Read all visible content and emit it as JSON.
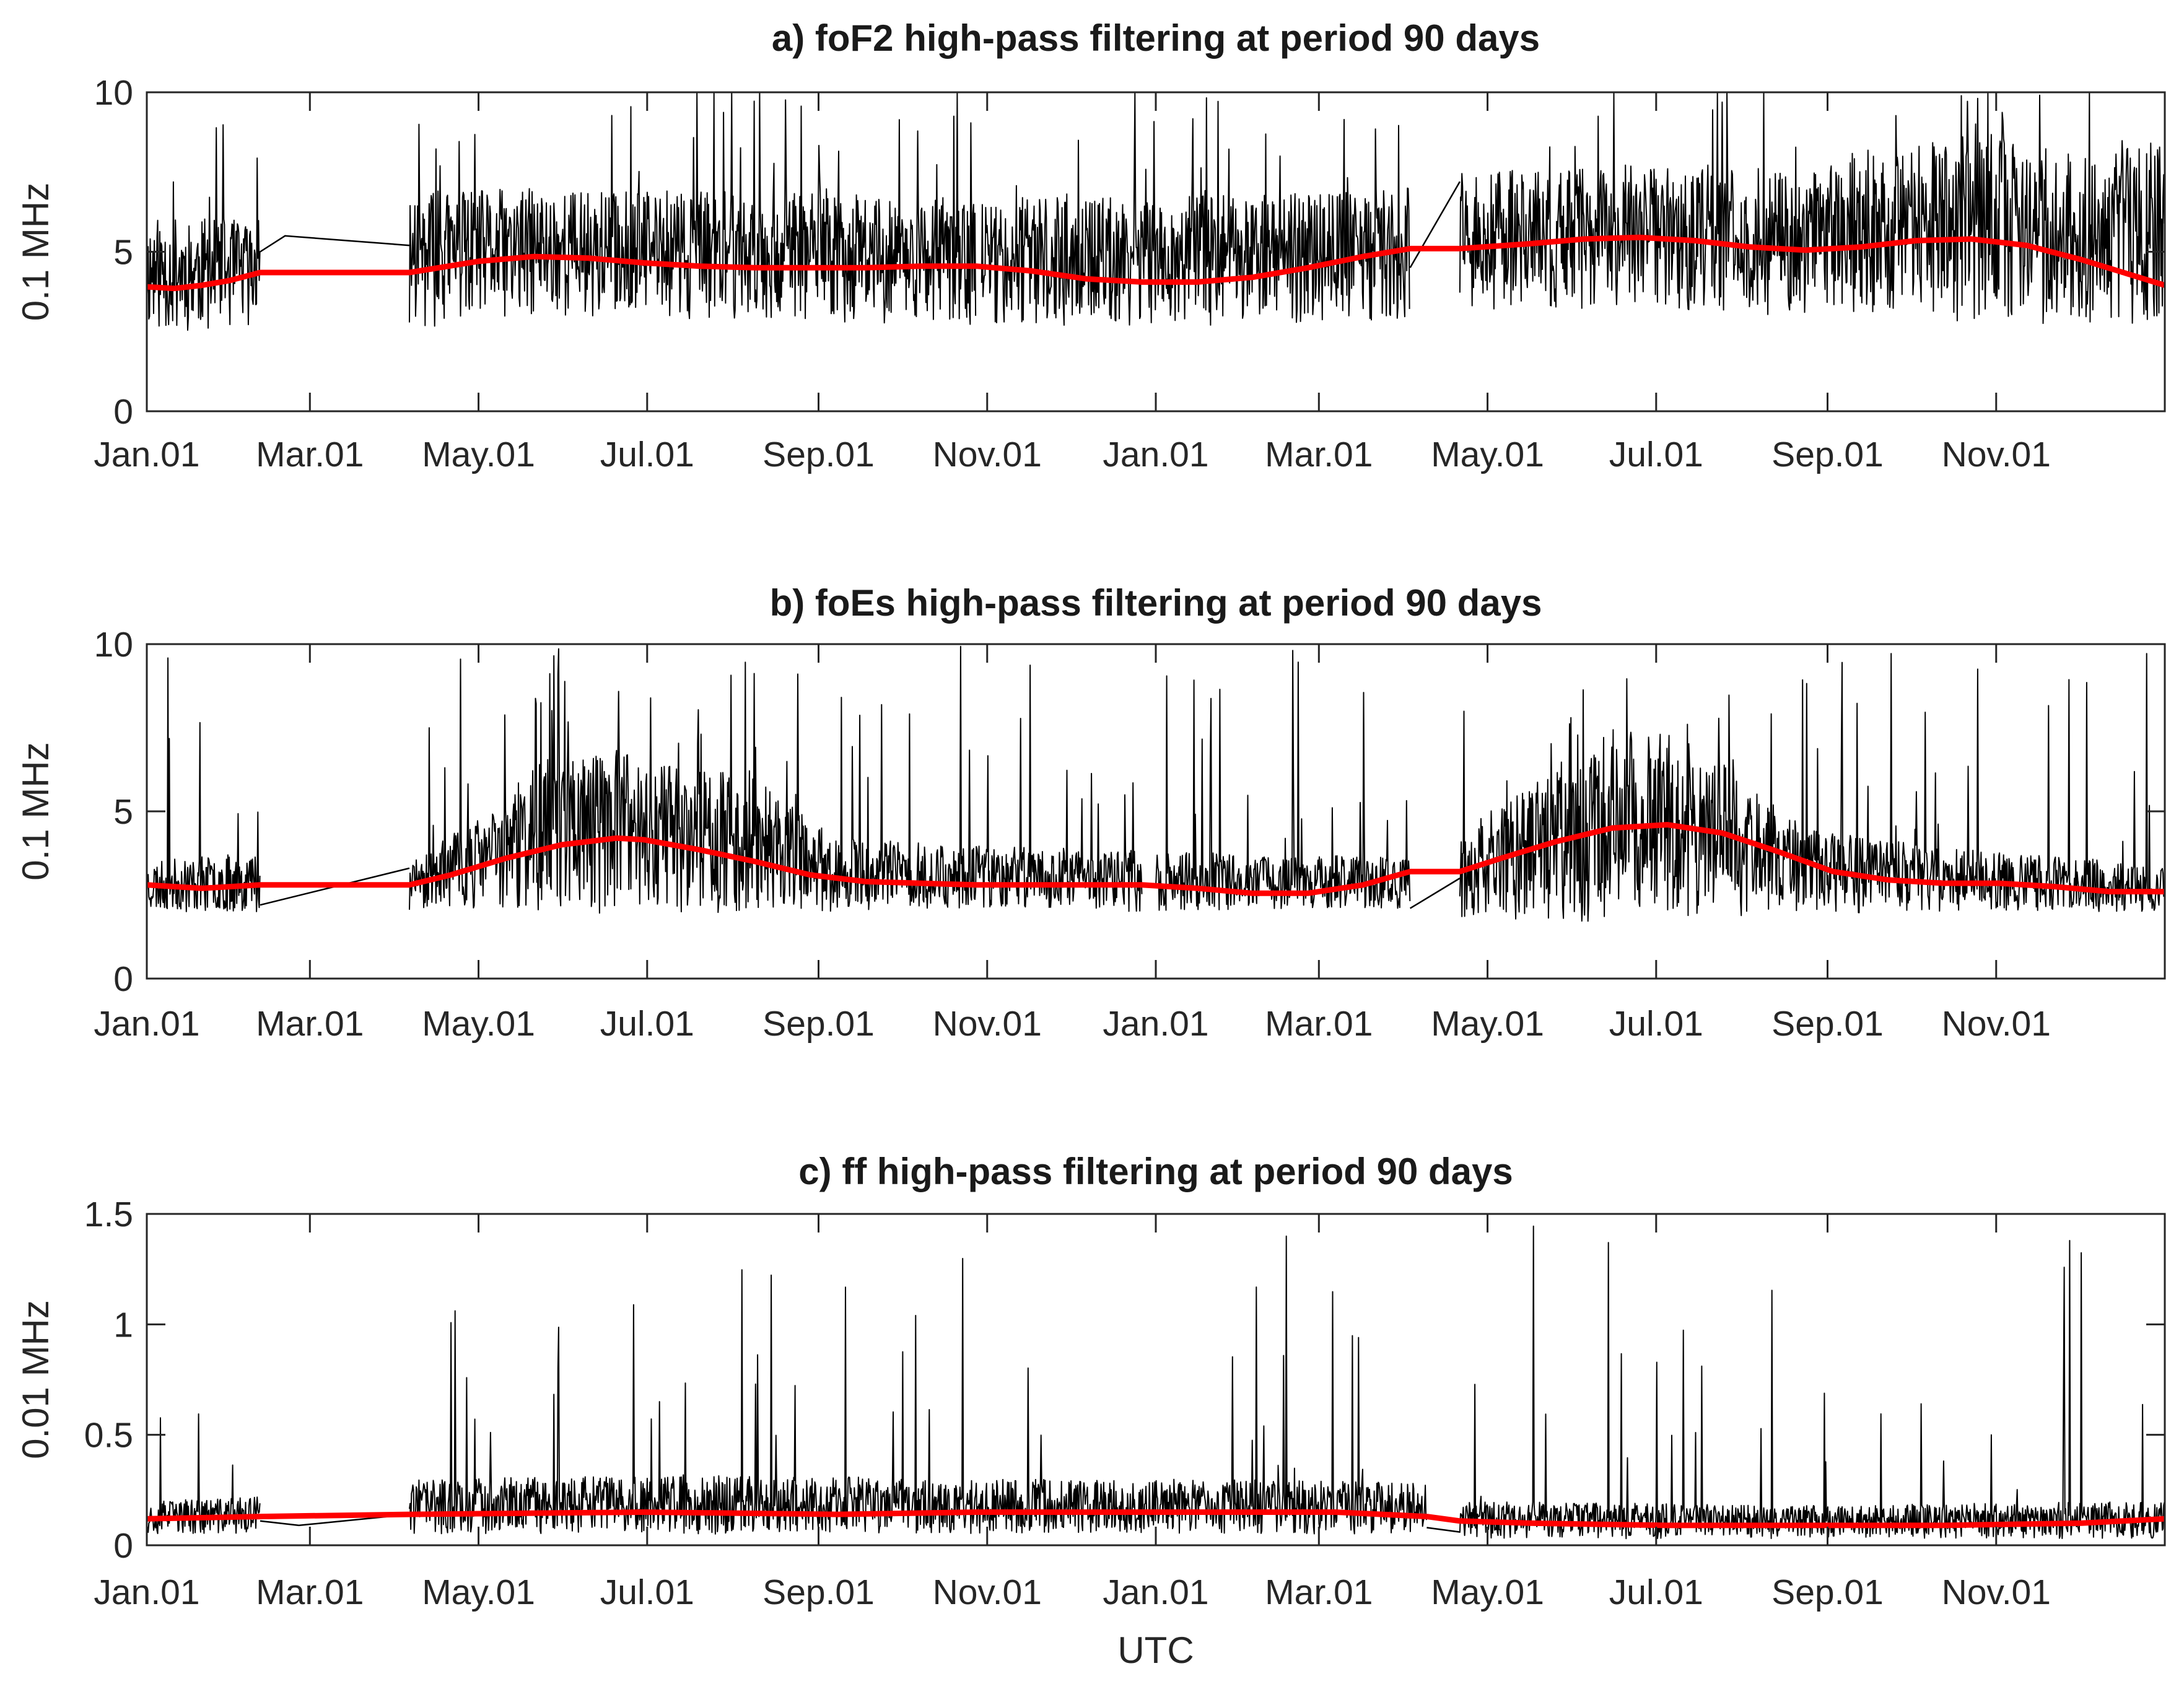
{
  "chart_data": [
    {
      "type": "line",
      "title": "a) foF2 high-pass filtering at period 90 days",
      "xlabel": "",
      "ylabel": "0.1 MHz",
      "ylim": [
        0,
        10
      ],
      "yticks": [
        0,
        5,
        10
      ],
      "xlim_days": [
        0,
        730
      ],
      "xticks": [
        {
          "day": 0,
          "label": "Jan.01"
        },
        {
          "day": 59,
          "label": "Mar.01"
        },
        {
          "day": 120,
          "label": "May.01"
        },
        {
          "day": 181,
          "label": "Jul.01"
        },
        {
          "day": 243,
          "label": "Sep.01"
        },
        {
          "day": 304,
          "label": "Nov.01"
        },
        {
          "day": 365,
          "label": "Jan.01"
        },
        {
          "day": 424,
          "label": "Mar.01"
        },
        {
          "day": 485,
          "label": "May.01"
        },
        {
          "day": 546,
          "label": "Jul.01"
        },
        {
          "day": 608,
          "label": "Sep.01"
        },
        {
          "day": 669,
          "label": "Nov.01"
        }
      ],
      "series": [
        {
          "name": "raw",
          "color": "#000000",
          "segments": [
            [
              0,
              41
            ],
            [
              95,
              300
            ],
            [
              302,
              457
            ],
            [
              475,
              730
            ]
          ],
          "gap_lines": [
            [
              [
                41,
                5.0
              ],
              [
                50,
                5.5
              ],
              [
                95,
                5.2
              ]
            ],
            [
              [
                457,
                4.5
              ],
              [
                475,
                7.2
              ]
            ]
          ],
          "envelope": {
            "day": [
              0,
              41,
              95,
              150,
              200,
              300,
              365,
              430,
              457,
              475,
              540,
              600,
              660,
              700,
              730
            ],
            "base": [
              2.5,
              2.6,
              2.6,
              3.0,
              2.9,
              2.7,
              2.6,
              2.8,
              2.9,
              3.2,
              3.1,
              3.0,
              2.8,
              2.7,
              2.7
            ],
            "top": [
              6.1,
              6.0,
              6.9,
              7.0,
              6.9,
              6.7,
              6.7,
              6.9,
              7.0,
              7.5,
              7.7,
              7.6,
              8.7,
              8.0,
              8.5
            ]
          },
          "spike_prob": 0.03,
          "spike_max": 10.4,
          "seed": 11
        },
        {
          "name": "trend",
          "color": "#ff0000",
          "day": [
            0,
            10,
            20,
            30,
            41,
            95,
            120,
            140,
            160,
            180,
            200,
            220,
            240,
            260,
            280,
            300,
            320,
            340,
            360,
            380,
            400,
            420,
            440,
            457,
            475,
            500,
            520,
            540,
            560,
            580,
            600,
            620,
            640,
            660,
            680,
            700,
            715,
            730
          ],
          "values": [
            3.9,
            3.85,
            3.95,
            4.1,
            4.35,
            4.35,
            4.7,
            4.85,
            4.8,
            4.65,
            4.55,
            4.5,
            4.5,
            4.5,
            4.55,
            4.55,
            4.4,
            4.15,
            4.05,
            4.05,
            4.2,
            4.5,
            4.85,
            5.1,
            5.1,
            5.25,
            5.4,
            5.45,
            5.35,
            5.15,
            5.05,
            5.15,
            5.35,
            5.4,
            5.2,
            4.75,
            4.35,
            3.95
          ]
        }
      ]
    },
    {
      "type": "line",
      "title": "b) foEs high-pass filtering at period 90 days",
      "xlabel": "",
      "ylabel": "0.1 MHz",
      "ylim": [
        0,
        10
      ],
      "yticks": [
        0,
        5,
        10
      ],
      "xlim_days": [
        0,
        730
      ],
      "xticks": [
        {
          "day": 0,
          "label": "Jan.01"
        },
        {
          "day": 59,
          "label": "Mar.01"
        },
        {
          "day": 120,
          "label": "May.01"
        },
        {
          "day": 181,
          "label": "Jul.01"
        },
        {
          "day": 243,
          "label": "Sep.01"
        },
        {
          "day": 304,
          "label": "Nov.01"
        },
        {
          "day": 365,
          "label": "Jan.01"
        },
        {
          "day": 424,
          "label": "Mar.01"
        },
        {
          "day": 485,
          "label": "May.01"
        },
        {
          "day": 546,
          "label": "Jul.01"
        },
        {
          "day": 608,
          "label": "Sep.01"
        },
        {
          "day": 669,
          "label": "Nov.01"
        }
      ],
      "series": [
        {
          "name": "raw",
          "color": "#000000",
          "segments": [
            [
              0,
              41
            ],
            [
              95,
              360
            ],
            [
              365,
              457
            ],
            [
              475,
              730
            ]
          ],
          "gap_lines": [
            [
              [
                41,
                2.2
              ],
              [
                95,
                3.3
              ]
            ],
            [
              [
                457,
                2.1
              ],
              [
                475,
                3.0
              ]
            ]
          ],
          "envelope": {
            "day": [
              0,
              41,
              95,
              120,
              150,
              180,
              220,
              250,
              300,
              360,
              420,
              457,
              475,
              500,
              530,
              560,
              600,
              650,
              700,
              730
            ],
            "base": [
              2.0,
              2.0,
              2.0,
              2.1,
              2.0,
              1.9,
              2.0,
              2.0,
              2.1,
              2.0,
              2.1,
              2.0,
              1.8,
              1.7,
              1.7,
              1.8,
              1.9,
              2.0,
              2.0,
              2.0
            ],
            "top": [
              3.5,
              3.8,
              3.5,
              4.8,
              7.0,
              6.8,
              6.0,
              4.2,
              4.0,
              3.8,
              3.7,
              3.6,
              4.3,
              6.0,
              7.5,
              7.2,
              4.5,
              3.9,
              3.6,
              3.3
            ]
          },
          "spike_prob": 0.04,
          "spike_max": 10,
          "seed": 23
        },
        {
          "name": "trend",
          "color": "#ff0000",
          "day": [
            0,
            20,
            41,
            95,
            110,
            130,
            150,
            170,
            180,
            200,
            220,
            240,
            260,
            280,
            300,
            320,
            340,
            360,
            380,
            400,
            420,
            440,
            457,
            475,
            490,
            510,
            530,
            550,
            570,
            590,
            610,
            630,
            650,
            670,
            690,
            710,
            730
          ],
          "values": [
            2.8,
            2.7,
            2.8,
            2.8,
            3.1,
            3.6,
            4.0,
            4.2,
            4.15,
            3.85,
            3.5,
            3.1,
            2.9,
            2.85,
            2.8,
            2.8,
            2.8,
            2.8,
            2.7,
            2.55,
            2.55,
            2.8,
            3.2,
            3.2,
            3.6,
            4.1,
            4.5,
            4.6,
            4.35,
            3.8,
            3.2,
            2.95,
            2.85,
            2.85,
            2.75,
            2.6,
            2.6
          ]
        }
      ]
    },
    {
      "type": "line",
      "title": "c) ff high-pass filtering at period 90 days",
      "xlabel": "UTC",
      "ylabel": "0.01 MHz",
      "ylim": [
        0,
        1.5
      ],
      "yticks": [
        0,
        0.5,
        1,
        1.5
      ],
      "xlim_days": [
        0,
        730
      ],
      "xticks": [
        {
          "day": 0,
          "label": "Jan.01"
        },
        {
          "day": 59,
          "label": "Mar.01"
        },
        {
          "day": 120,
          "label": "May.01"
        },
        {
          "day": 181,
          "label": "Jul.01"
        },
        {
          "day": 243,
          "label": "Sep.01"
        },
        {
          "day": 304,
          "label": "Nov.01"
        },
        {
          "day": 365,
          "label": "Jan.01"
        },
        {
          "day": 424,
          "label": "Mar.01"
        },
        {
          "day": 485,
          "label": "May.01"
        },
        {
          "day": 546,
          "label": "Jul.01"
        },
        {
          "day": 608,
          "label": "Sep.01"
        },
        {
          "day": 669,
          "label": "Nov.01"
        }
      ],
      "series": [
        {
          "name": "raw",
          "color": "#000000",
          "segments": [
            [
              0,
              41
            ],
            [
              95,
              463
            ],
            [
              475,
              730
            ]
          ],
          "gap_lines": [
            [
              [
                41,
                0.11
              ],
              [
                55,
                0.09
              ],
              [
                95,
                0.14
              ]
            ],
            [
              [
                463,
                0.08
              ],
              [
                475,
                0.06
              ]
            ]
          ],
          "envelope": {
            "day": [
              0,
              41,
              95,
              200,
              300,
              400,
              463,
              475,
              600,
              730
            ],
            "base": [
              0.05,
              0.05,
              0.05,
              0.05,
              0.05,
              0.05,
              0.05,
              0.03,
              0.03,
              0.03
            ],
            "top": [
              0.2,
              0.22,
              0.3,
              0.32,
              0.3,
              0.3,
              0.28,
              0.2,
              0.18,
              0.2
            ]
          },
          "spike_prob": 0.025,
          "spike_max": 1.45,
          "seed": 37
        },
        {
          "name": "trend",
          "color": "#ff0000",
          "day": [
            0,
            41,
            95,
            180,
            250,
            300,
            360,
            430,
            463,
            475,
            500,
            550,
            600,
            650,
            700,
            730
          ],
          "values": [
            0.12,
            0.13,
            0.14,
            0.15,
            0.14,
            0.15,
            0.15,
            0.15,
            0.13,
            0.11,
            0.1,
            0.09,
            0.09,
            0.09,
            0.1,
            0.12
          ]
        }
      ]
    }
  ]
}
